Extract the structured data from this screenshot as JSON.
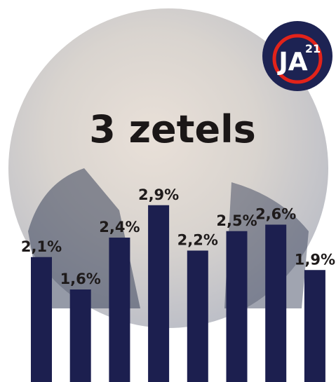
{
  "chart_data": {
    "type": "bar",
    "title": "3 zetels",
    "categories": [
      null,
      null,
      null,
      null,
      null,
      null,
      null,
      null
    ],
    "values": [
      2.1,
      1.6,
      2.4,
      2.9,
      2.2,
      2.5,
      2.6,
      1.9
    ],
    "value_labels": [
      "2,1%",
      "1,6%",
      "2,4%",
      "2,9%",
      "2,2%",
      "2,5%",
      "2,6%",
      "1,9%"
    ],
    "color": "#1c1f4f"
  },
  "logo": {
    "text": "JA",
    "superscript": "21"
  }
}
